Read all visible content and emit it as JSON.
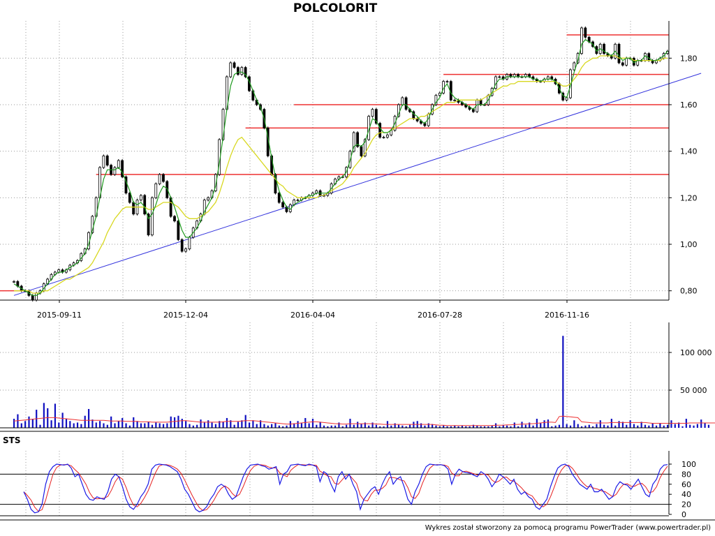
{
  "title": "POLCOLORIT",
  "credit": "Wykres został stworzony za pomocą programu PowerTrader (www.powertrader.pl)",
  "sts_label": "STS",
  "colors": {
    "candle": "#000000",
    "ma_fast": "#1e9a1e",
    "ma_slow": "#d8d820",
    "support_lines": "#ee3030",
    "trendline": "#3333dd",
    "volume": "#1010c0",
    "volume_avg": "#ee3030",
    "sts_k": "#1a1ae6",
    "sts_d": "#e62020",
    "grid": "#999999"
  },
  "chart_data": [
    {
      "type": "candlestick",
      "title": "POLCOLORIT",
      "x_ticks": [
        "2015-09-11",
        "2015-12-04",
        "2016-04-04",
        "2016-07-28",
        "2016-11-16"
      ],
      "y_ticks": [
        "0,80",
        "1,00",
        "1,20",
        "1,40",
        "1,60",
        "1,80"
      ],
      "ylim": [
        0.76,
        1.96
      ],
      "grid": "dotted",
      "close": [
        0.84,
        0.82,
        0.8,
        0.8,
        0.78,
        0.76,
        0.79,
        0.8,
        0.83,
        0.85,
        0.87,
        0.88,
        0.89,
        0.88,
        0.89,
        0.91,
        0.92,
        0.93,
        0.96,
        0.98,
        1.05,
        1.12,
        1.2,
        1.33,
        1.38,
        1.34,
        1.3,
        1.33,
        1.36,
        1.29,
        1.22,
        1.18,
        1.13,
        1.19,
        1.21,
        1.13,
        1.04,
        1.2,
        1.26,
        1.3,
        1.27,
        1.2,
        1.12,
        1.1,
        1.02,
        0.97,
        0.98,
        1.03,
        1.07,
        1.1,
        1.13,
        1.19,
        1.2,
        1.23,
        1.3,
        1.45,
        1.58,
        1.72,
        1.78,
        1.76,
        1.73,
        1.76,
        1.72,
        1.66,
        1.62,
        1.6,
        1.58,
        1.5,
        1.38,
        1.3,
        1.22,
        1.18,
        1.16,
        1.14,
        1.17,
        1.19,
        1.19,
        1.2,
        1.2,
        1.21,
        1.22,
        1.23,
        1.21,
        1.21,
        1.22,
        1.26,
        1.28,
        1.29,
        1.29,
        1.33,
        1.4,
        1.48,
        1.42,
        1.38,
        1.45,
        1.55,
        1.58,
        1.52,
        1.46,
        1.46,
        1.47,
        1.49,
        1.55,
        1.6,
        1.63,
        1.58,
        1.57,
        1.54,
        1.53,
        1.52,
        1.51,
        1.56,
        1.6,
        1.64,
        1.65,
        1.7,
        1.7,
        1.62,
        1.62,
        1.61,
        1.6,
        1.59,
        1.58,
        1.57,
        1.62,
        1.6,
        1.6,
        1.64,
        1.67,
        1.72,
        1.72,
        1.71,
        1.73,
        1.72,
        1.73,
        1.72,
        1.72,
        1.73,
        1.72,
        1.71,
        1.7,
        1.7,
        1.71,
        1.72,
        1.71,
        1.69,
        1.65,
        1.62,
        1.63,
        1.75,
        1.78,
        1.82,
        1.93,
        1.89,
        1.87,
        1.85,
        1.82,
        1.86,
        1.82,
        1.81,
        1.8,
        1.86,
        1.78,
        1.77,
        1.8,
        1.8,
        1.77,
        1.79,
        1.79,
        1.82,
        1.79,
        1.78,
        1.79,
        1.8,
        1.82,
        1.83
      ],
      "ma_fast": [
        0.83,
        0.82,
        0.81,
        0.8,
        0.79,
        0.78,
        0.78,
        0.79,
        0.81,
        0.83,
        0.85,
        0.87,
        0.88,
        0.88,
        0.89,
        0.9,
        0.91,
        0.92,
        0.94,
        0.96,
        1.0,
        1.06,
        1.12,
        1.2,
        1.28,
        1.32,
        1.32,
        1.32,
        1.33,
        1.31,
        1.27,
        1.23,
        1.18,
        1.17,
        1.18,
        1.16,
        1.11,
        1.13,
        1.17,
        1.22,
        1.25,
        1.24,
        1.2,
        1.16,
        1.11,
        1.06,
        1.03,
        1.03,
        1.05,
        1.07,
        1.1,
        1.14,
        1.17,
        1.2,
        1.25,
        1.35,
        1.46,
        1.58,
        1.68,
        1.73,
        1.74,
        1.74,
        1.73,
        1.7,
        1.66,
        1.62,
        1.59,
        1.54,
        1.46,
        1.37,
        1.29,
        1.23,
        1.19,
        1.16,
        1.15,
        1.17,
        1.18,
        1.19,
        1.2,
        1.21,
        1.21,
        1.22,
        1.22,
        1.22,
        1.22,
        1.24,
        1.26,
        1.28,
        1.29,
        1.31,
        1.36,
        1.42,
        1.43,
        1.42,
        1.44,
        1.49,
        1.54,
        1.53,
        1.5,
        1.48,
        1.48,
        1.49,
        1.52,
        1.56,
        1.6,
        1.6,
        1.58,
        1.56,
        1.55,
        1.53,
        1.52,
        1.54,
        1.58,
        1.61,
        1.63,
        1.67,
        1.69,
        1.65,
        1.63,
        1.62,
        1.61,
        1.6,
        1.59,
        1.58,
        1.6,
        1.6,
        1.6,
        1.62,
        1.65,
        1.69,
        1.71,
        1.71,
        1.72,
        1.72,
        1.72,
        1.72,
        1.72,
        1.72,
        1.72,
        1.71,
        1.71,
        1.7,
        1.71,
        1.71,
        1.71,
        1.7,
        1.67,
        1.64,
        1.63,
        1.68,
        1.74,
        1.79,
        1.86,
        1.88,
        1.87,
        1.86,
        1.83,
        1.84,
        1.83,
        1.82,
        1.81,
        1.83,
        1.81,
        1.79,
        1.8,
        1.8,
        1.78,
        1.79,
        1.79,
        1.81,
        1.8,
        1.79,
        1.79,
        1.8,
        1.81,
        1.83
      ],
      "ma_slow": [
        0.8,
        0.8,
        0.8,
        0.8,
        0.8,
        0.79,
        0.79,
        0.79,
        0.8,
        0.8,
        0.81,
        0.82,
        0.83,
        0.84,
        0.85,
        0.85,
        0.86,
        0.87,
        0.88,
        0.89,
        0.9,
        0.92,
        0.95,
        0.98,
        1.01,
        1.05,
        1.08,
        1.11,
        1.13,
        1.15,
        1.16,
        1.16,
        1.16,
        1.16,
        1.16,
        1.16,
        1.15,
        1.15,
        1.16,
        1.17,
        1.18,
        1.18,
        1.18,
        1.17,
        1.16,
        1.14,
        1.12,
        1.11,
        1.11,
        1.11,
        1.12,
        1.13,
        1.14,
        1.16,
        1.18,
        1.22,
        1.27,
        1.33,
        1.38,
        1.42,
        1.45,
        1.46,
        1.44,
        1.42,
        1.4,
        1.38,
        1.36,
        1.34,
        1.32,
        1.3,
        1.28,
        1.26,
        1.25,
        1.23,
        1.22,
        1.21,
        1.2,
        1.2,
        1.2,
        1.2,
        1.2,
        1.2,
        1.21,
        1.21,
        1.22,
        1.23,
        1.24,
        1.25,
        1.26,
        1.28,
        1.3,
        1.33,
        1.35,
        1.37,
        1.39,
        1.42,
        1.45,
        1.47,
        1.48,
        1.48,
        1.48,
        1.49,
        1.5,
        1.51,
        1.52,
        1.53,
        1.54,
        1.54,
        1.54,
        1.55,
        1.55,
        1.56,
        1.57,
        1.58,
        1.59,
        1.6,
        1.61,
        1.61,
        1.61,
        1.62,
        1.62,
        1.62,
        1.62,
        1.62,
        1.62,
        1.62,
        1.63,
        1.64,
        1.65,
        1.66,
        1.67,
        1.68,
        1.68,
        1.69,
        1.69,
        1.7,
        1.7,
        1.7,
        1.7,
        1.7,
        1.7,
        1.7,
        1.7,
        1.7,
        1.7,
        1.7,
        1.69,
        1.68,
        1.68,
        1.69,
        1.71,
        1.73,
        1.76,
        1.78,
        1.79,
        1.8,
        1.8,
        1.81,
        1.81,
        1.81,
        1.81,
        1.81,
        1.8,
        1.8,
        1.8,
        1.8,
        1.79,
        1.79,
        1.79,
        1.79,
        1.79,
        1.79,
        1.79,
        1.79,
        1.8,
        1.8
      ],
      "support_levels": [
        1.3,
        1.5,
        1.6,
        1.73,
        1.9
      ],
      "trendline": {
        "from": [
          0,
          0.78
        ],
        "to": [
          184,
          1.735
        ]
      }
    },
    {
      "type": "bar",
      "name": "volume",
      "y_ticks": [
        "50 000",
        "100 000"
      ],
      "ylim": [
        0,
        125000
      ],
      "values": [
        12000,
        18000,
        6000,
        9000,
        15000,
        12000,
        24000,
        4000,
        33000,
        26000,
        10000,
        32000,
        7000,
        20000,
        12000,
        9000,
        6000,
        7000,
        5000,
        16000,
        25000,
        11000,
        7000,
        9000,
        6000,
        4000,
        15000,
        6000,
        9000,
        13000,
        6000,
        3000,
        14000,
        9000,
        6000,
        6000,
        8000,
        4000,
        7000,
        6000,
        5000,
        6000,
        15000,
        14000,
        16000,
        12000,
        9000,
        5000,
        3000,
        4000,
        11000,
        7000,
        10000,
        7000,
        5000,
        9000,
        8000,
        13000,
        10000,
        4000,
        8000,
        10000,
        17000,
        7000,
        10000,
        5000,
        10000,
        5000,
        3000,
        5000,
        6000,
        3000,
        2000,
        3000,
        9000,
        6000,
        9000,
        6000,
        13000,
        6000,
        12000,
        4000,
        8000,
        3000,
        2000,
        3000,
        3000,
        7000,
        2000,
        4000,
        12000,
        4000,
        8000,
        5000,
        7000,
        3000,
        7000,
        4000,
        2000,
        2000,
        9000,
        3000,
        6000,
        4000,
        3000,
        2000,
        4000,
        8000,
        9000,
        6000,
        3000,
        6000,
        5000,
        3000,
        2000,
        3000,
        2000,
        2000,
        3000,
        2000,
        3000,
        2000,
        2000,
        4000,
        3000,
        2000,
        2000,
        2000,
        3000,
        6000,
        2000,
        4000,
        3000,
        2000,
        7000,
        2000,
        8000,
        4000,
        7000,
        3000,
        12000,
        6000,
        10000,
        11000,
        2000,
        3000,
        4000,
        122000,
        5000,
        3000,
        10000,
        5000,
        2000,
        3000,
        4000,
        2000,
        5000,
        10000,
        4000,
        3000,
        12000,
        3000,
        9000,
        8000,
        4000,
        10000,
        5000,
        3000,
        8000,
        4000,
        3000,
        6000,
        3000,
        6000,
        3000,
        4000,
        10000,
        5000,
        7000,
        2000,
        12000,
        4000,
        3000,
        5000,
        11000,
        6000,
        4000
      ],
      "avg": [
        9000,
        9500,
        10000,
        10500,
        11000,
        11500,
        12000,
        12500,
        13000,
        13500,
        13500,
        13500,
        13000,
        12500,
        12000,
        11500,
        11000,
        10500,
        10000,
        10000,
        10000,
        10000,
        10000,
        10000,
        10000,
        9500,
        9000,
        9000,
        9000,
        9000,
        8500,
        8500,
        8500,
        8500,
        8000,
        8000,
        8000,
        7500,
        7500,
        7500,
        7500,
        7500,
        8000,
        8500,
        9000,
        9500,
        9500,
        9000,
        8500,
        8000,
        7500,
        7500,
        7500,
        7500,
        7500,
        7500,
        8000,
        8500,
        8500,
        8500,
        8500,
        9000,
        9500,
        9500,
        9500,
        9000,
        8500,
        8000,
        7500,
        7000,
        6500,
        6000,
        5500,
        5000,
        5000,
        5500,
        6000,
        6500,
        7000,
        7500,
        8000,
        8000,
        7500,
        7000,
        6500,
        6000,
        5500,
        5500,
        5000,
        5000,
        5500,
        5500,
        5500,
        5500,
        5500,
        5500,
        5500,
        5000,
        5000,
        4500,
        4500,
        4500,
        4500,
        4500,
        4500,
        4500,
        4500,
        4500,
        4500,
        4500,
        4500,
        4500,
        4500,
        4000,
        3500,
        3500,
        3000,
        3000,
        3000,
        3000,
        3000,
        3000,
        3000,
        3000,
        3000,
        3000,
        3000,
        3000,
        3000,
        3500,
        3500,
        3500,
        4000,
        4000,
        4500,
        4500,
        5000,
        5000,
        5500,
        5500,
        6000,
        6500,
        7000,
        7500,
        7500,
        7000,
        15000,
        15500,
        15000,
        14500,
        14000,
        13500,
        8000,
        7500,
        7000,
        6500,
        6500,
        6500,
        6500,
        6500,
        7000,
        7000,
        7000,
        7000,
        7000,
        7000,
        7000,
        7000,
        7000,
        7000,
        6500,
        6000,
        6000,
        6000,
        6000,
        6000,
        6000,
        6000,
        6000,
        6000,
        6000,
        6500,
        6500,
        6500,
        6500,
        6500,
        6500,
        6500,
        6500,
        6500,
        6500
      ]
    },
    {
      "type": "line",
      "name": "STS",
      "y_ticks": [
        "0",
        "20",
        "40",
        "60",
        "80",
        "100"
      ],
      "ylim": [
        0,
        100
      ],
      "hlines": [
        20,
        80
      ],
      "series": [
        {
          "values": [
            45,
            30,
            10,
            3,
            5,
            20,
            60,
            85,
            95,
            100,
            99,
            98,
            100,
            92,
            75,
            80,
            60,
            40,
            30,
            28,
            35,
            32,
            30,
            45,
            70,
            80,
            75,
            55,
            30,
            15,
            10,
            20,
            35,
            45,
            60,
            90,
            98,
            100,
            99,
            98,
            95,
            90,
            85,
            70,
            50,
            40,
            25,
            10,
            5,
            8,
            15,
            30,
            40,
            55,
            60,
            55,
            40,
            30,
            35,
            55,
            75,
            90,
            98,
            99,
            100,
            97,
            95,
            90,
            92,
            95,
            60,
            80,
            85,
            98,
            99,
            100,
            98,
            97,
            100,
            98,
            95,
            65,
            85,
            80,
            60,
            45,
            75,
            85,
            70,
            80,
            60,
            45,
            10,
            30,
            40,
            50,
            55,
            40,
            60,
            75,
            85,
            60,
            70,
            75,
            55,
            30,
            20,
            45,
            60,
            80,
            95,
            100,
            99,
            98,
            99,
            97,
            90,
            60,
            80,
            90,
            85,
            83,
            82,
            78,
            75,
            85,
            80,
            70,
            55,
            65,
            80,
            75,
            68,
            60,
            70,
            50,
            40,
            45,
            35,
            30,
            15,
            10,
            20,
            30,
            55,
            75,
            92,
            98,
            100,
            95,
            80,
            70,
            60,
            55,
            50,
            60,
            45,
            45,
            50,
            40,
            30,
            35,
            55,
            65,
            60,
            58,
            50,
            60,
            70,
            55,
            40,
            35,
            60,
            70,
            90,
            98,
            99
          ]
        }
      ]
    }
  ]
}
